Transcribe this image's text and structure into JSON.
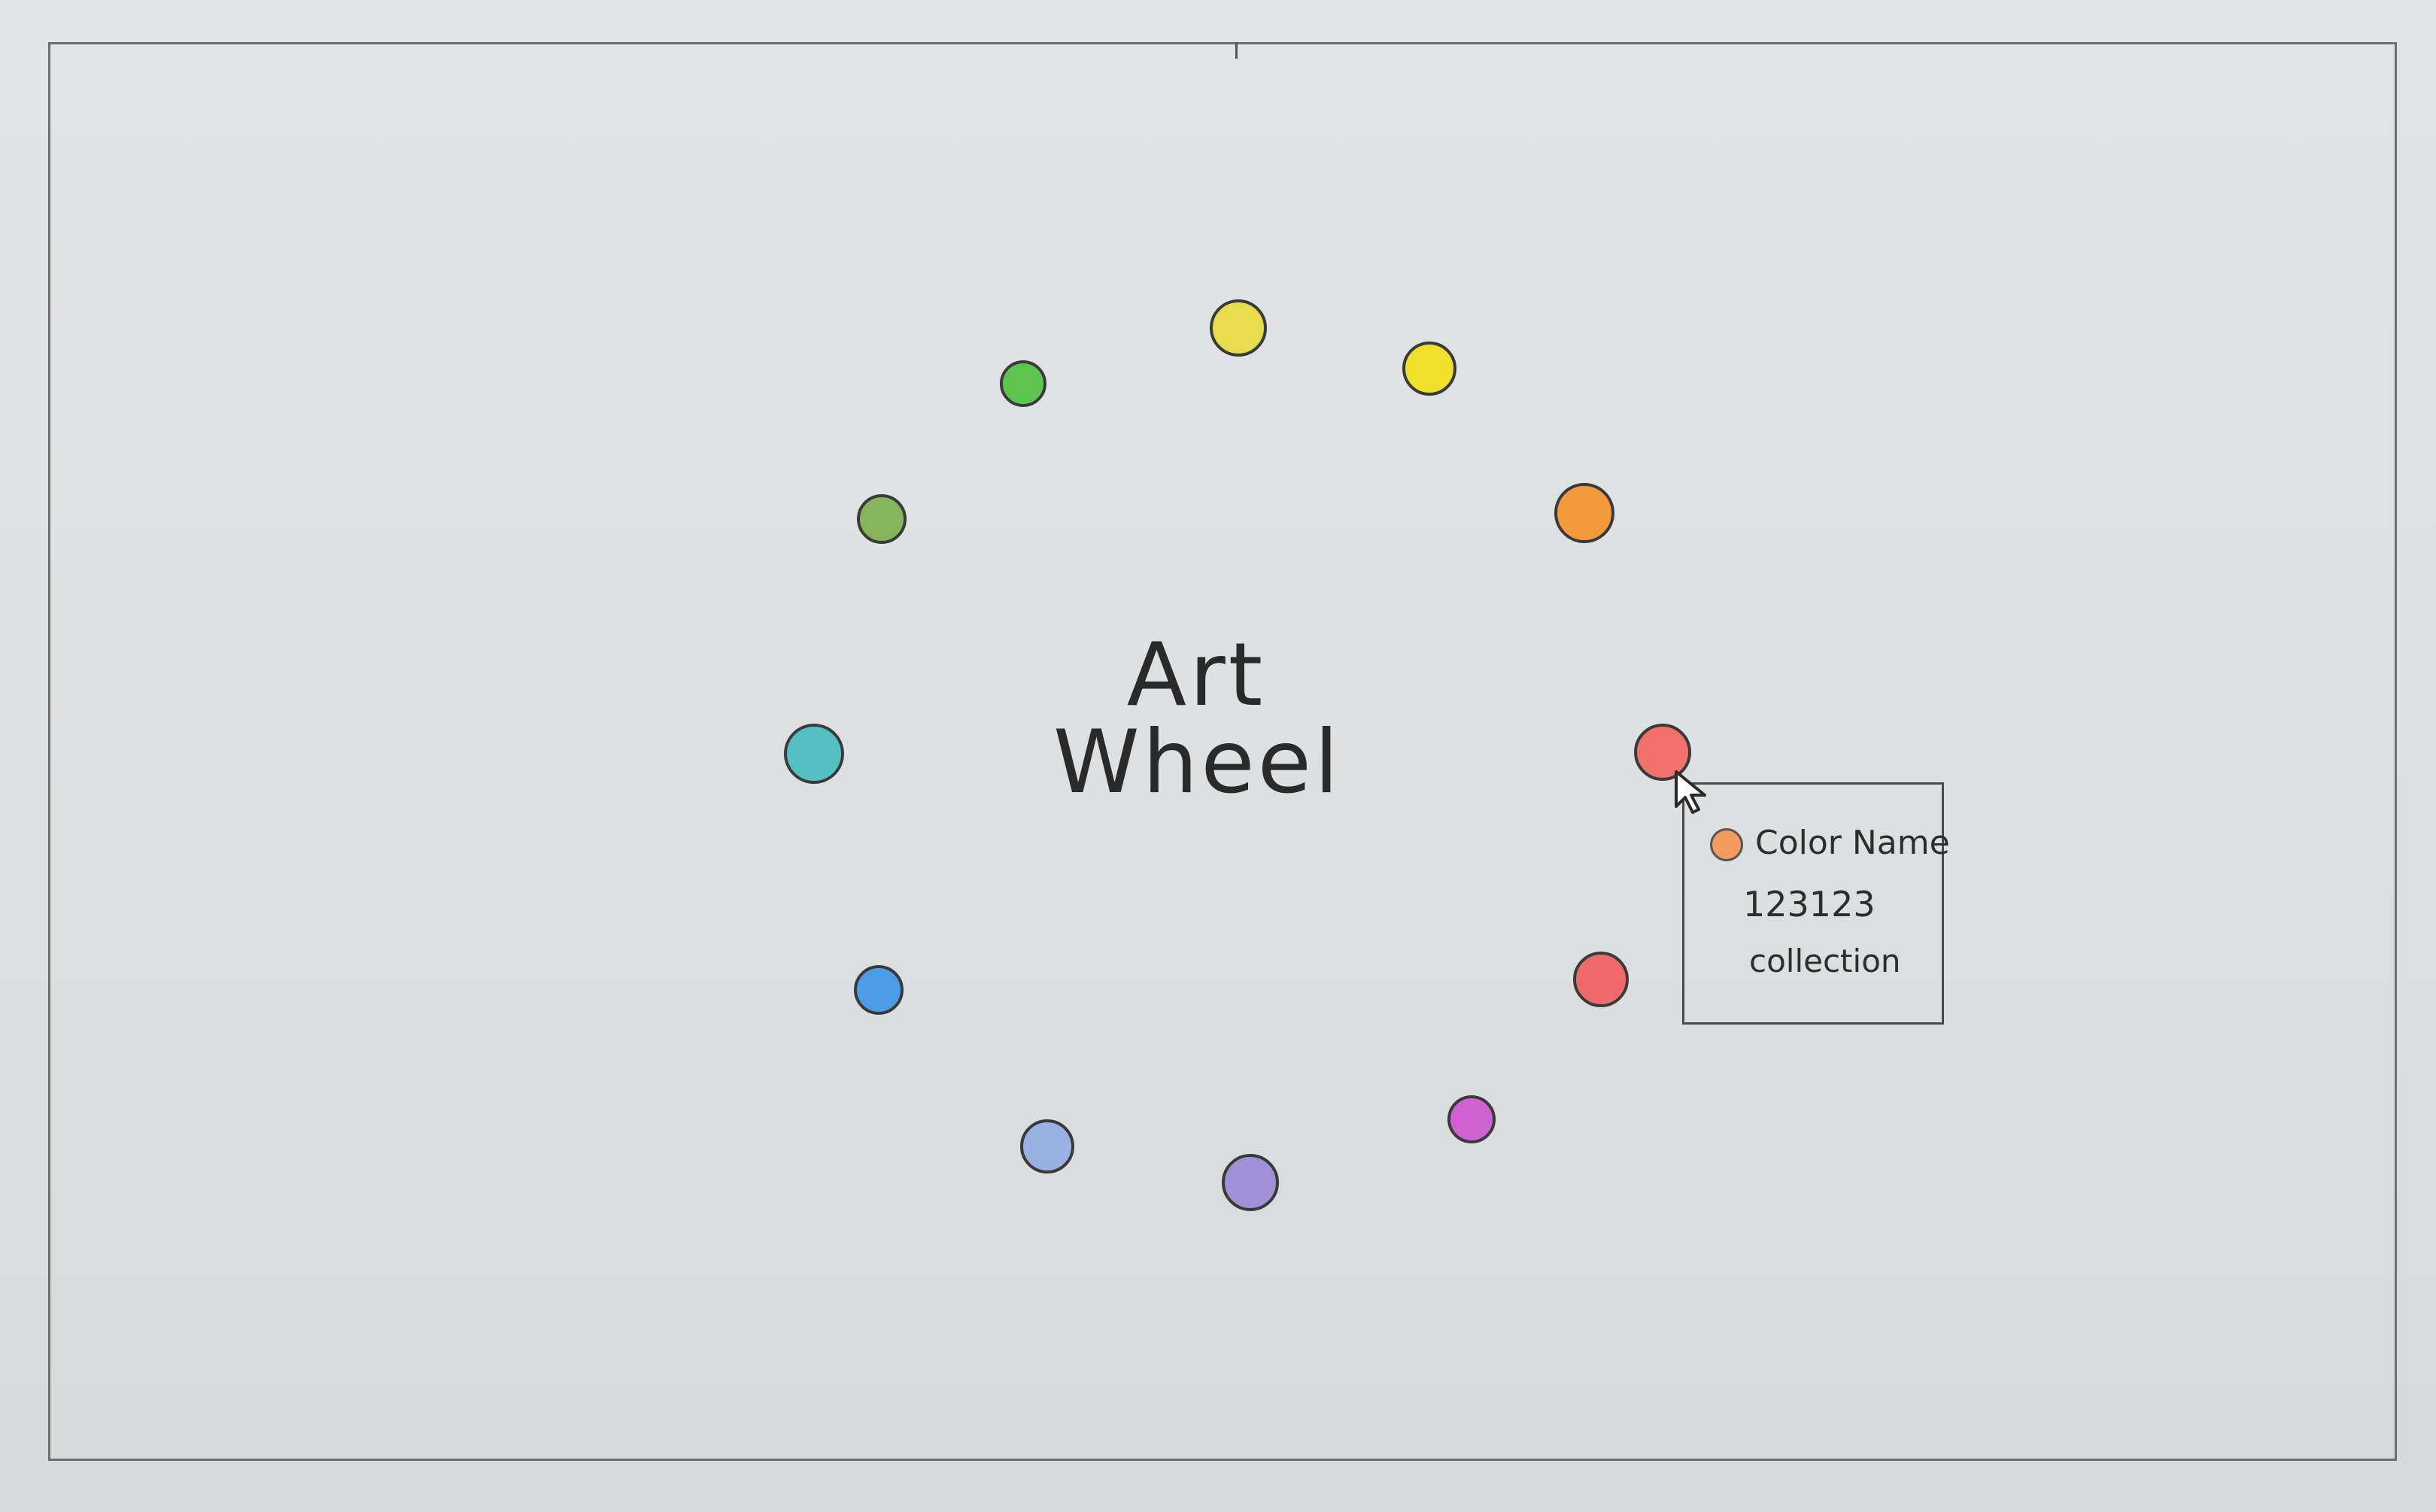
{
  "wheel": {
    "title_line1": "Art",
    "title_line2": "Wheel",
    "swatches": [
      {
        "color": "#e8dc4e"
      },
      {
        "color": "#f0e02c"
      },
      {
        "color": "#f39a3c"
      },
      {
        "color": "#f2716a"
      },
      {
        "color": "#ee6a6a"
      },
      {
        "color": "#cf62d2"
      },
      {
        "color": "#a090d6"
      },
      {
        "color": "#9ab1e4"
      },
      {
        "color": "#4c9ce6"
      },
      {
        "color": "#54c0c4"
      },
      {
        "color": "#86b45a"
      },
      {
        "color": "#5cc552"
      }
    ]
  },
  "tooltip": {
    "swatch_color": "#f39a5e",
    "color_name": "Color Name",
    "color_code": "123123",
    "collection": "collection"
  }
}
